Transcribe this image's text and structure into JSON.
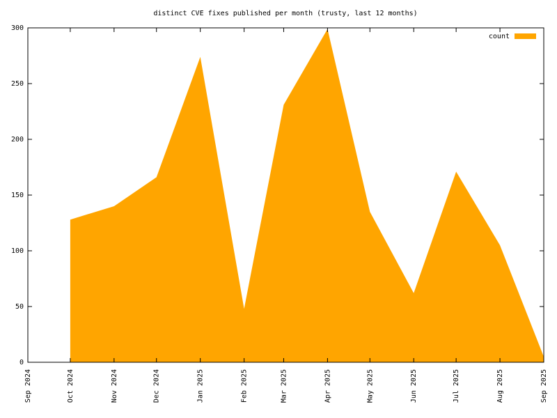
{
  "chart_data": {
    "type": "area",
    "title": "distinct CVE fixes published per month (trusty, last 12 months)",
    "categories": [
      "Sep 2024",
      "Oct 2024",
      "Nov 2024",
      "Dec 2024",
      "Jan 2025",
      "Feb 2025",
      "Mar 2025",
      "Apr 2025",
      "May 2025",
      "Jun 2025",
      "Jul 2025",
      "Aug 2025",
      "Sep 2025"
    ],
    "series": [
      {
        "name": "count",
        "color": "#ffa500",
        "values": [
          null,
          128,
          140,
          166,
          274,
          48,
          231,
          299,
          135,
          62,
          171,
          105,
          5
        ]
      }
    ],
    "ylim": [
      0,
      300
    ],
    "yticks": [
      0,
      50,
      100,
      150,
      200,
      250,
      300
    ],
    "legend": "top-right"
  }
}
